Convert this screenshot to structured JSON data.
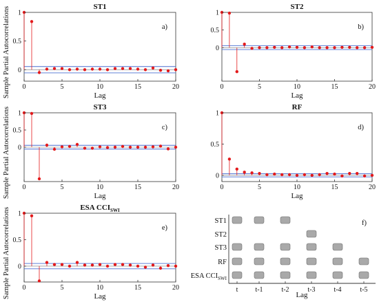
{
  "chart_data": [
    {
      "type": "stem",
      "title": "ST1",
      "panel_label": "a)",
      "xlabel": "Lag",
      "ylabel": "Sample Partial Autocorrelations",
      "xlim": [
        0,
        20
      ],
      "ylim": [
        -0.2,
        1
      ],
      "xticks": [
        "0",
        "5",
        "10",
        "15",
        "20"
      ],
      "yticks": [
        "0",
        "0.5",
        "1"
      ],
      "conf_bound": 0.055,
      "lags": [
        0,
        1,
        2,
        3,
        4,
        5,
        6,
        7,
        8,
        9,
        10,
        11,
        12,
        13,
        14,
        15,
        16,
        17,
        18,
        19,
        20
      ],
      "values": [
        1,
        0.84,
        -0.05,
        0.01,
        0.02,
        0.02,
        0.0,
        0.01,
        0.0,
        0.01,
        0.01,
        0.0,
        0.02,
        0.02,
        0.02,
        0.01,
        0.0,
        0.03,
        -0.01,
        -0.02,
        0.0
      ]
    },
    {
      "type": "stem",
      "title": "ST2",
      "panel_label": "b)",
      "xlabel": "Lag",
      "ylabel": "",
      "xlim": [
        0,
        20
      ],
      "ylim": [
        -0.95,
        1
      ],
      "xticks": [
        "0",
        "5",
        "10",
        "15",
        "20"
      ],
      "yticks": [
        "0",
        "0.5",
        "1"
      ],
      "conf_bound": 0.055,
      "lags": [
        0,
        1,
        2,
        3,
        4,
        5,
        6,
        7,
        8,
        9,
        10,
        11,
        12,
        13,
        14,
        15,
        16,
        17,
        18,
        19,
        20
      ],
      "values": [
        1,
        0.98,
        -0.68,
        0.1,
        -0.02,
        0.0,
        0.0,
        0.01,
        0.0,
        0.02,
        0.01,
        0.0,
        0.02,
        0.0,
        0.0,
        0.0,
        0.01,
        0.01,
        0.0,
        0.0,
        0.01
      ]
    },
    {
      "type": "stem",
      "title": "ST3",
      "panel_label": "c)",
      "xlabel": "Lag",
      "ylabel": "Sample Partial Autocorrelations",
      "xlim": [
        0,
        20
      ],
      "ylim": [
        -1,
        1
      ],
      "xticks": [
        "0",
        "5",
        "10",
        "15",
        "20"
      ],
      "yticks": [
        "0",
        "0.5",
        "1"
      ],
      "conf_bound": 0.055,
      "lags": [
        0,
        1,
        2,
        3,
        4,
        5,
        6,
        7,
        8,
        9,
        10,
        11,
        12,
        13,
        14,
        15,
        16,
        17,
        18,
        19,
        20
      ],
      "values": [
        1,
        0.98,
        -0.92,
        0.06,
        -0.06,
        0.01,
        0.02,
        0.08,
        -0.03,
        -0.03,
        0.01,
        -0.01,
        0.0,
        0.02,
        0.0,
        0.0,
        0.0,
        0.01,
        0.03,
        -0.05,
        0.0
      ]
    },
    {
      "type": "stem",
      "title": "RF",
      "panel_label": "d)",
      "xlabel": "Lag",
      "ylabel": "",
      "xlim": [
        0,
        20
      ],
      "ylim": [
        -0.1,
        1
      ],
      "xticks": [
        "0",
        "5",
        "10",
        "15",
        "20"
      ],
      "yticks": [
        "0",
        "0.5",
        "1"
      ],
      "conf_bound": 0.025,
      "lags": [
        0,
        1,
        2,
        3,
        4,
        5,
        6,
        7,
        8,
        9,
        10,
        11,
        12,
        13,
        14,
        15,
        16,
        17,
        18,
        19,
        20
      ],
      "values": [
        1,
        0.26,
        0.1,
        0.05,
        0.04,
        0.03,
        0.01,
        0.02,
        0.01,
        0.01,
        0.0,
        0.01,
        0.0,
        0.01,
        0.03,
        0.02,
        -0.01,
        0.03,
        0.03,
        -0.01,
        0.0
      ]
    },
    {
      "type": "stem",
      "title": "ESA CCI",
      "title_sub": "SWI",
      "panel_label": "e)",
      "xlabel": "Lag",
      "ylabel": "Sample Partial Autocorrelations",
      "xlim": [
        0,
        20
      ],
      "ylim": [
        -0.3,
        1
      ],
      "xticks": [
        "0",
        "5",
        "10",
        "15",
        "20"
      ],
      "yticks": [
        "0",
        "0.5",
        "1"
      ],
      "conf_bound": 0.05,
      "lags": [
        0,
        1,
        2,
        3,
        4,
        5,
        6,
        7,
        8,
        9,
        10,
        11,
        12,
        13,
        14,
        15,
        16,
        17,
        18,
        19,
        20
      ],
      "values": [
        1,
        0.95,
        -0.28,
        0.07,
        0.03,
        0.03,
        0.0,
        0.07,
        0.02,
        0.02,
        0.03,
        0.0,
        0.03,
        0.03,
        0.02,
        0.0,
        -0.02,
        0.02,
        -0.04,
        0.01,
        0.0
      ]
    },
    {
      "type": "table",
      "panel_label": "f)",
      "xlabel": "Lag",
      "rows": [
        "ST1",
        "ST2",
        "ST3",
        "RF",
        "ESA CCI"
      ],
      "row_sub": [
        "",
        "",
        "",
        "",
        "SWI"
      ],
      "columns": [
        "t",
        "t-1",
        "t-2",
        "t-3",
        "t-4",
        "t-5"
      ],
      "selected": [
        [
          true,
          true,
          true,
          false,
          false,
          false
        ],
        [
          false,
          false,
          false,
          true,
          false,
          false
        ],
        [
          true,
          true,
          true,
          true,
          true,
          false
        ],
        [
          true,
          true,
          true,
          true,
          true,
          true
        ],
        [
          true,
          true,
          true,
          true,
          true,
          true
        ]
      ]
    }
  ],
  "colors": {
    "stem": "#e31a1c",
    "marker": "#e31a1c",
    "bound": "#4a6fd1",
    "axis": "#333333",
    "cell": "#a9a9a9"
  }
}
